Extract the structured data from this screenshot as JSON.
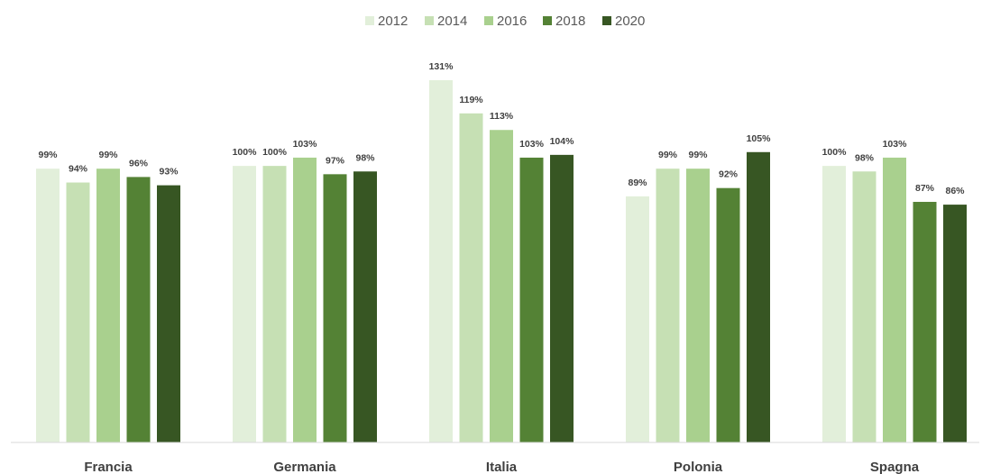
{
  "chart_data": {
    "type": "bar",
    "categories": [
      "Francia",
      "Germania",
      "Italia",
      "Polonia",
      "Spagna"
    ],
    "series": [
      {
        "name": "2012",
        "color": "#e2efda",
        "values": [
          99,
          100,
          131,
          89,
          100
        ],
        "labels": [
          "99%",
          "100%",
          "131%",
          "89%",
          "100%"
        ]
      },
      {
        "name": "2014",
        "color": "#c6e0b4",
        "values": [
          94,
          100,
          119,
          99,
          98
        ],
        "labels": [
          "94%",
          "100%",
          "119%",
          "99%",
          "98%"
        ]
      },
      {
        "name": "2016",
        "color": "#a9d08e",
        "values": [
          99,
          103,
          113,
          99,
          103
        ],
        "labels": [
          "99%",
          "103%",
          "113%",
          "99%",
          "103%"
        ]
      },
      {
        "name": "2018",
        "color": "#548235",
        "values": [
          96,
          97,
          103,
          92,
          87
        ],
        "labels": [
          "96%",
          "97%",
          "103%",
          "92%",
          "87%"
        ]
      },
      {
        "name": "2020",
        "color": "#375623",
        "values": [
          93,
          98,
          104,
          105,
          86
        ],
        "labels": [
          "93%",
          "98%",
          "104%",
          "105%",
          "86%"
        ]
      }
    ],
    "ylim": [
      0,
      131
    ],
    "grid": false,
    "legend": "top-center"
  }
}
